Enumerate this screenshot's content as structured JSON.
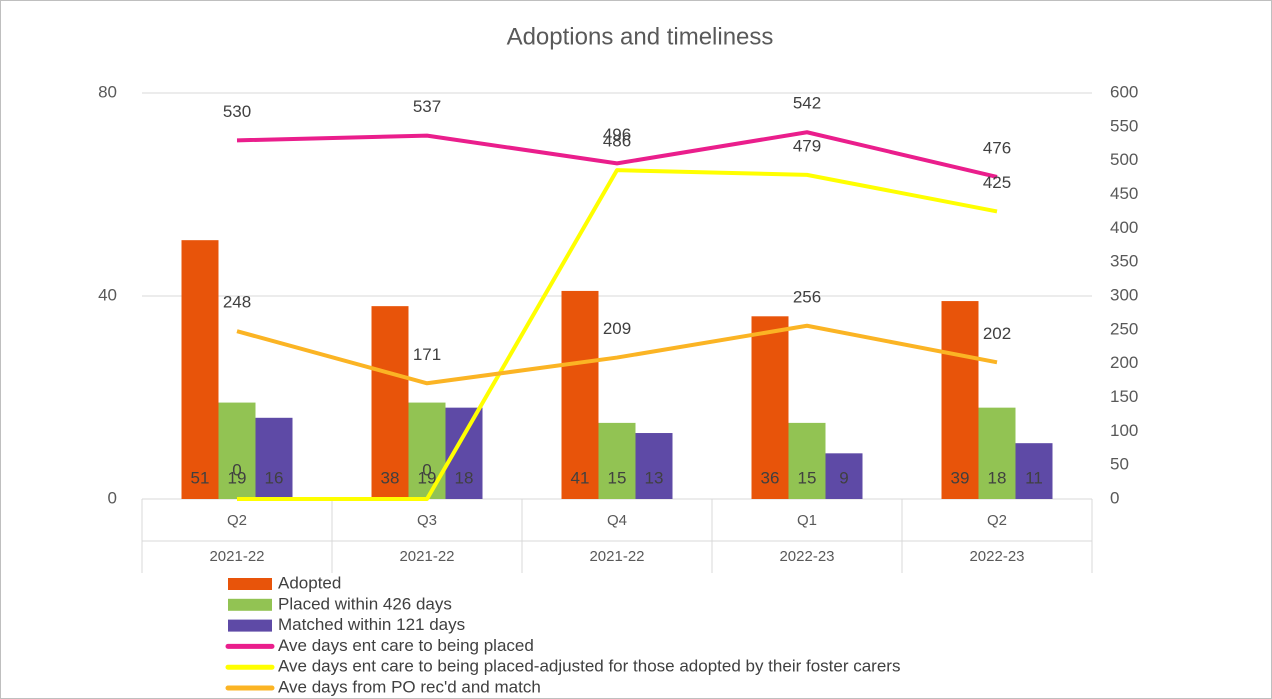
{
  "chart_data": {
    "type": "bar",
    "title": "Adoptions and timeliness",
    "categories": [
      "Q2",
      "Q3",
      "Q4",
      "Q1",
      "Q2"
    ],
    "category_groups": [
      "2021-22",
      "2021-22",
      "2021-22",
      "2022-23",
      "2022-23"
    ],
    "ylim": [
      0,
      80
    ],
    "yticks": [
      0,
      40,
      80
    ],
    "y2lim": [
      0,
      600
    ],
    "y2ticks": [
      0,
      50,
      100,
      150,
      200,
      250,
      300,
      350,
      400,
      450,
      500,
      550,
      600
    ],
    "grid": true,
    "legend": "bottom",
    "series": [
      {
        "name": "Adopted",
        "type": "bar",
        "color": "#e8540a",
        "values": [
          51,
          38,
          41,
          36,
          39
        ]
      },
      {
        "name": "Placed within 426 days",
        "type": "bar",
        "color": "#92c353",
        "values": [
          19,
          19,
          15,
          15,
          18
        ]
      },
      {
        "name": "Matched within 121 days",
        "type": "bar",
        "color": "#5e4aa6",
        "values": [
          16,
          18,
          13,
          9,
          11
        ]
      },
      {
        "name": "Ave days ent care to being placed",
        "type": "line",
        "axis": "y2",
        "color": "#ea1e8c",
        "values": [
          530,
          537,
          496,
          542,
          476
        ]
      },
      {
        "name": "Ave days ent care to being placed-adjusted for those adopted by their foster carers",
        "type": "line",
        "axis": "y2",
        "color": "#ffff00",
        "values": [
          0,
          0,
          486,
          479,
          425
        ]
      },
      {
        "name": "Ave days from PO rec'd and match",
        "type": "line",
        "axis": "y2",
        "color": "#fbb424",
        "values": [
          248,
          171,
          209,
          256,
          202
        ]
      }
    ]
  }
}
